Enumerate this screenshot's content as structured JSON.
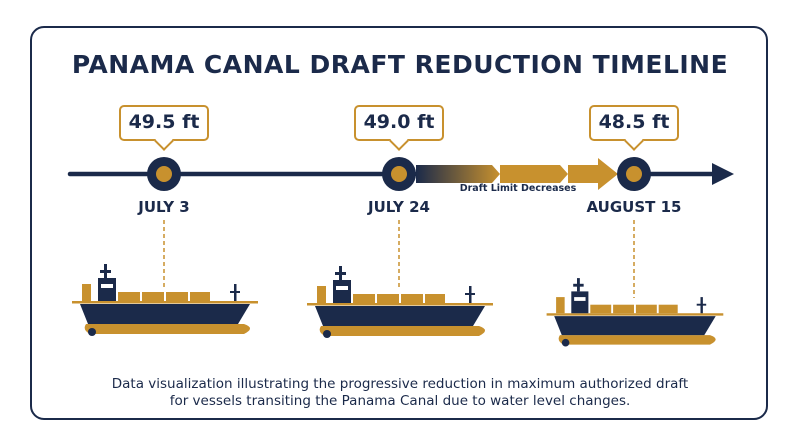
{
  "title": "PANAMA CANAL DRAFT REDUCTION TIMELINE",
  "timeline": {
    "annotation": "Draft Limit Decreases",
    "points": [
      {
        "date": "JULY 3",
        "draft": "49.5 ft"
      },
      {
        "date": "JULY 24",
        "draft": "49.0 ft"
      },
      {
        "date": "AUGUST 15",
        "draft": "48.5 ft"
      }
    ]
  },
  "caption": {
    "line1": "Data visualization illustrating the progressive reduction in maximum authorized draft",
    "line2": "for vessels transiting the Panama Canal due to water level changes."
  },
  "colors": {
    "navy": "#1b2a4a",
    "gold": "#c8912e",
    "light_gold": "#e0b25a"
  }
}
